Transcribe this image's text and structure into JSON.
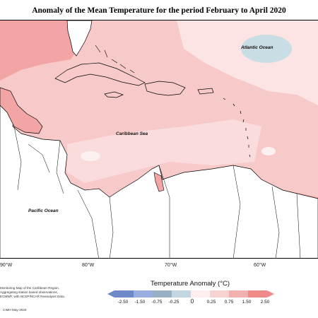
{
  "title": "Anomaly of the Mean Temperature for the period February to April 2020",
  "map": {
    "sea_labels": {
      "atlantic": "Atlantic Ocean",
      "caribbean": "Caribbean Sea",
      "pacific": "Pacific Ocean"
    },
    "longitude_labels": [
      "90°W",
      "80°W",
      "70°W",
      "60°W"
    ],
    "colors": {
      "land": "#ffffff",
      "coast": "#000000",
      "anomaly_very_light": "#fde4e4",
      "anomaly_light": "#f8c7c6",
      "anomaly_medium": "#f3a5a5",
      "anomaly_strong": "#ee8787",
      "cool_patch": "#c9dde4"
    }
  },
  "credits": [
    "Monitoring Map of the Caribbean Region.",
    "Aggregating station based observations,",
    "ECMWF, with NCEP/NCAR Reanalysis Data.",
    "CIMH May-2020"
  ],
  "legend": {
    "title": "Temperature Anomaly (°C)",
    "ticks": [
      "-2.50",
      "-1.50",
      "-0.75",
      "-0.25",
      "0",
      "0.25",
      "0.75",
      "1.50",
      "2.50"
    ],
    "bins": [
      {
        "color": "#6f88c9"
      },
      {
        "color": "#98aee0"
      },
      {
        "color": "#97b0c2"
      },
      {
        "color": "#c3d6e0"
      },
      {
        "color": "#fdeeee"
      },
      {
        "color": "#f8d2d2"
      },
      {
        "color": "#f3aeae"
      },
      {
        "color": "#ef8a8a"
      }
    ]
  }
}
